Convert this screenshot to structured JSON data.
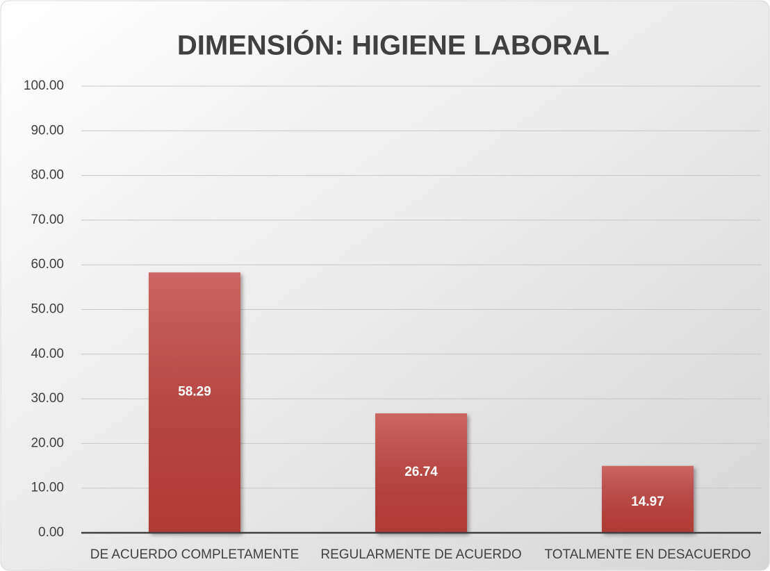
{
  "chart_data": {
    "type": "bar",
    "title": "DIMENSIÓN: HIGIENE LABORAL",
    "categories": [
      "DE ACUERDO COMPLETAMENTE",
      "REGULARMENTE DE ACUERDO",
      "TOTALMENTE EN DESACUERDO"
    ],
    "values": [
      58.29,
      26.74,
      14.97
    ],
    "color": "#c0403b",
    "ylim": [
      0,
      100
    ],
    "yticks": [
      {
        "value": 0,
        "label": "0.00"
      },
      {
        "value": 10,
        "label": "10.00"
      },
      {
        "value": 20,
        "label": "20.00"
      },
      {
        "value": 30,
        "label": "30.00"
      },
      {
        "value": 40,
        "label": "40.00"
      },
      {
        "value": 50,
        "label": "50.00"
      },
      {
        "value": 60,
        "label": "60.00"
      },
      {
        "value": 70,
        "label": "70.00"
      },
      {
        "value": 80,
        "label": "80.00"
      },
      {
        "value": 90,
        "label": "90.00"
      },
      {
        "value": 100,
        "label": "100.00"
      }
    ],
    "grid": true
  }
}
